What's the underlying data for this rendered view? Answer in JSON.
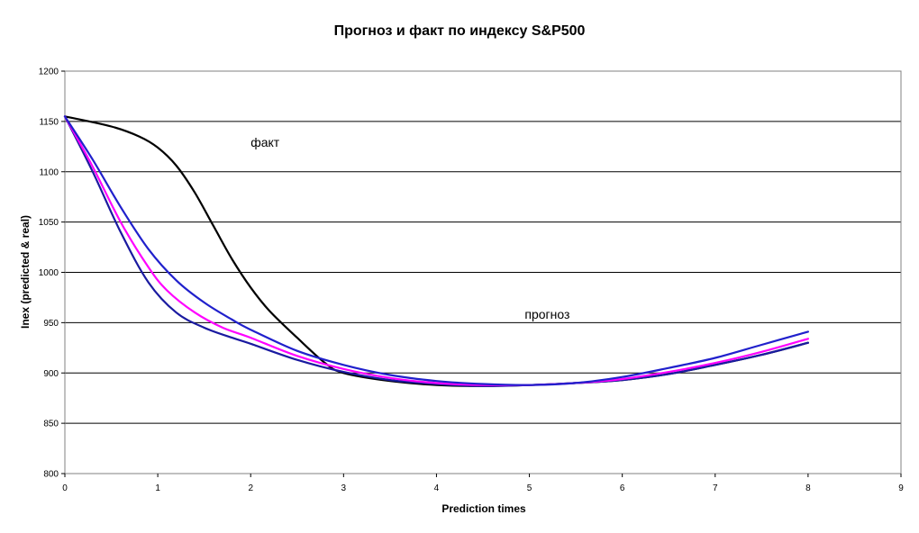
{
  "chart_data": {
    "type": "line",
    "title": "Прогноз и факт по индексу S&P500",
    "xlabel": "Prediction times",
    "ylabel": "Inex (predicted & real)",
    "xlim": [
      0,
      9
    ],
    "ylim": [
      800,
      1200
    ],
    "x_ticks": [
      0,
      1,
      2,
      3,
      4,
      5,
      6,
      7,
      8,
      9
    ],
    "y_ticks": [
      800,
      850,
      900,
      950,
      1000,
      1050,
      1100,
      1150,
      1200
    ],
    "grid": "horizontal",
    "annotations": [
      {
        "text": "факт",
        "x": 2.0,
        "y": 1125
      },
      {
        "text": "прогноз",
        "x": 4.95,
        "y": 954
      }
    ],
    "series": [
      {
        "color": "#000000",
        "x": [
          0,
          0.5,
          0.8,
          1.0,
          1.2,
          1.4,
          1.6,
          1.8,
          2.0,
          2.2,
          2.5,
          2.8,
          3.0,
          3.5,
          4.0,
          4.5,
          5.0,
          5.5,
          6.0,
          6.5,
          7.0,
          7.5,
          8.0
        ],
        "y": [
          1155,
          1145,
          1135,
          1124,
          1106,
          1079,
          1046,
          1013,
          985,
          962,
          935,
          910,
          900,
          892,
          888,
          887,
          888,
          890,
          893,
          899,
          908,
          918,
          930
        ]
      },
      {
        "color": "#1a1aa0",
        "x": [
          0,
          0.3,
          0.6,
          0.9,
          1.2,
          1.5,
          1.8,
          2.0,
          2.5,
          3.0,
          3.5,
          4.0,
          4.5,
          5.0,
          5.5,
          6.0,
          6.5,
          7.0,
          7.5,
          8.0
        ],
        "y": [
          1155,
          1100,
          1040,
          990,
          960,
          945,
          935,
          929,
          913,
          901,
          893,
          889,
          887,
          888,
          890,
          893,
          899,
          908,
          918,
          930
        ]
      },
      {
        "color": "#ff00ff",
        "x": [
          0,
          0.3,
          0.6,
          0.9,
          1.1,
          1.4,
          1.7,
          2.0,
          2.5,
          3.0,
          3.5,
          4.0,
          4.5,
          5.0,
          5.5,
          6.0,
          6.5,
          7.0,
          7.5,
          8.0
        ],
        "y": [
          1155,
          1105,
          1050,
          1005,
          982,
          960,
          945,
          935,
          917,
          904,
          895,
          890,
          888,
          888,
          890,
          894,
          901,
          910,
          921,
          934
        ]
      },
      {
        "color": "#2020cc",
        "x": [
          0,
          0.3,
          0.6,
          0.9,
          1.2,
          1.5,
          1.8,
          2.0,
          2.5,
          3.0,
          3.5,
          4.0,
          4.5,
          5.0,
          5.5,
          6.0,
          6.5,
          7.0,
          7.5,
          8.0
        ],
        "y": [
          1155,
          1112,
          1065,
          1023,
          992,
          970,
          953,
          943,
          922,
          908,
          898,
          892,
          889,
          888,
          890,
          896,
          905,
          915,
          928,
          941
        ]
      }
    ]
  }
}
